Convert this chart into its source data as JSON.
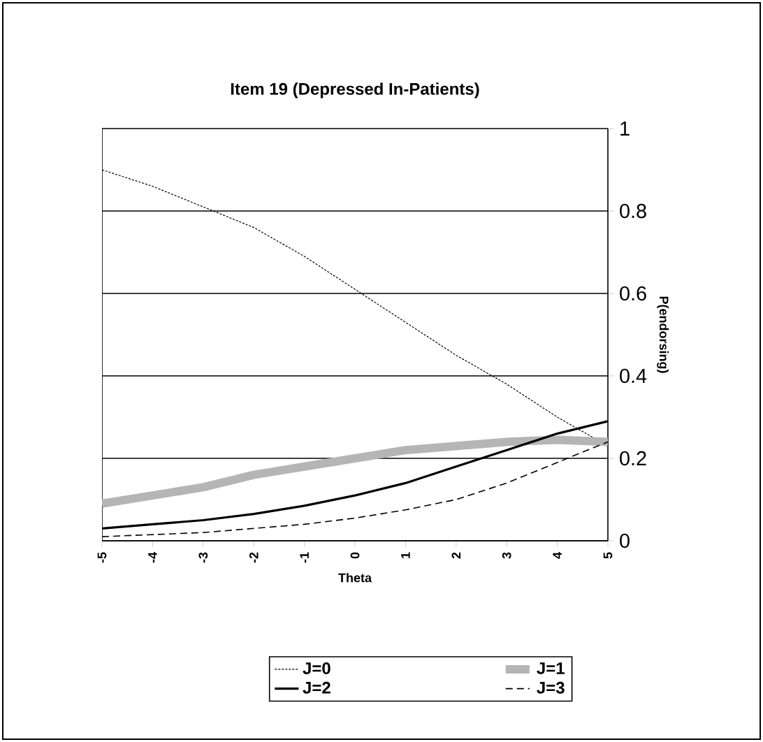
{
  "chart_data": {
    "type": "line",
    "title": "Item 19 (Depressed In-Patients)",
    "xlabel": "Theta",
    "ylabel": "P(endorsing)",
    "x": [
      -5,
      -4,
      -3,
      -2,
      -1,
      0,
      1,
      2,
      3,
      4,
      5
    ],
    "series": [
      {
        "name": "J=0",
        "color": "#000000",
        "line_style": "dotted",
        "values": [
          0.9,
          0.86,
          0.81,
          0.76,
          0.69,
          0.61,
          0.53,
          0.45,
          0.38,
          0.3,
          0.23
        ]
      },
      {
        "name": "J=1",
        "color": "#b5b5b5",
        "line_style": "solid",
        "values": [
          0.09,
          0.11,
          0.13,
          0.16,
          0.18,
          0.2,
          0.22,
          0.23,
          0.24,
          0.245,
          0.24
        ]
      },
      {
        "name": "J=2",
        "color": "#000000",
        "line_style": "solid",
        "values": [
          0.03,
          0.04,
          0.05,
          0.065,
          0.085,
          0.11,
          0.14,
          0.18,
          0.22,
          0.26,
          0.29
        ]
      },
      {
        "name": "J=3",
        "color": "#000000",
        "line_style": "dashed",
        "values": [
          0.01,
          0.015,
          0.02,
          0.03,
          0.04,
          0.055,
          0.075,
          0.1,
          0.14,
          0.19,
          0.24
        ]
      }
    ],
    "xlim": [
      -5,
      5
    ],
    "xticks": [
      -5,
      -4,
      -3,
      -2,
      -1,
      0,
      1,
      2,
      3,
      4,
      5
    ],
    "ylim": [
      0,
      1
    ],
    "yticks": [
      0,
      0.2,
      0.4,
      0.6,
      0.8,
      1
    ],
    "grid": "y",
    "legend": "bottom",
    "marker": "none"
  }
}
